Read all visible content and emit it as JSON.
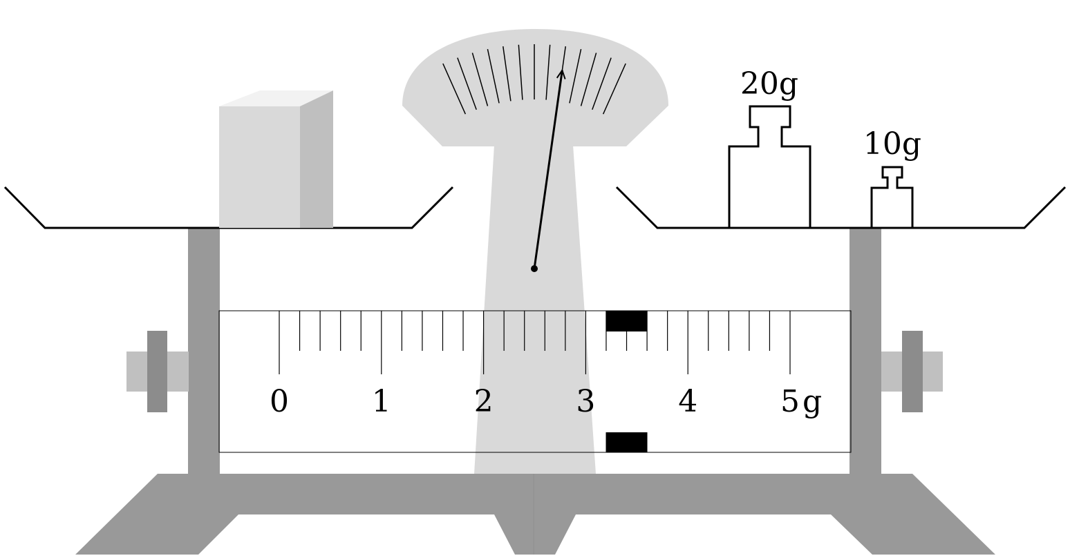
{
  "weights": {
    "big_label": "20g",
    "small_label": "10g"
  },
  "scale": {
    "unit": "g",
    "min": 0,
    "max": 5,
    "minor_step": 0.2,
    "tick_labels": [
      "0",
      "1",
      "2",
      "3",
      "4",
      "5"
    ],
    "rider_position": 3.4
  },
  "dial": {
    "tick_count": 13,
    "pointer_tick_index": 8
  },
  "colors": {
    "frame": "#999999",
    "dial_face": "#d9d9d9",
    "block_front": "#d9d9d9",
    "block_top": "#f2f2f2",
    "block_side": "#bfbfbf",
    "knob_shaft": "#c0c0c0",
    "knob_nut": "#8c8c8c",
    "rider": "#000000"
  }
}
